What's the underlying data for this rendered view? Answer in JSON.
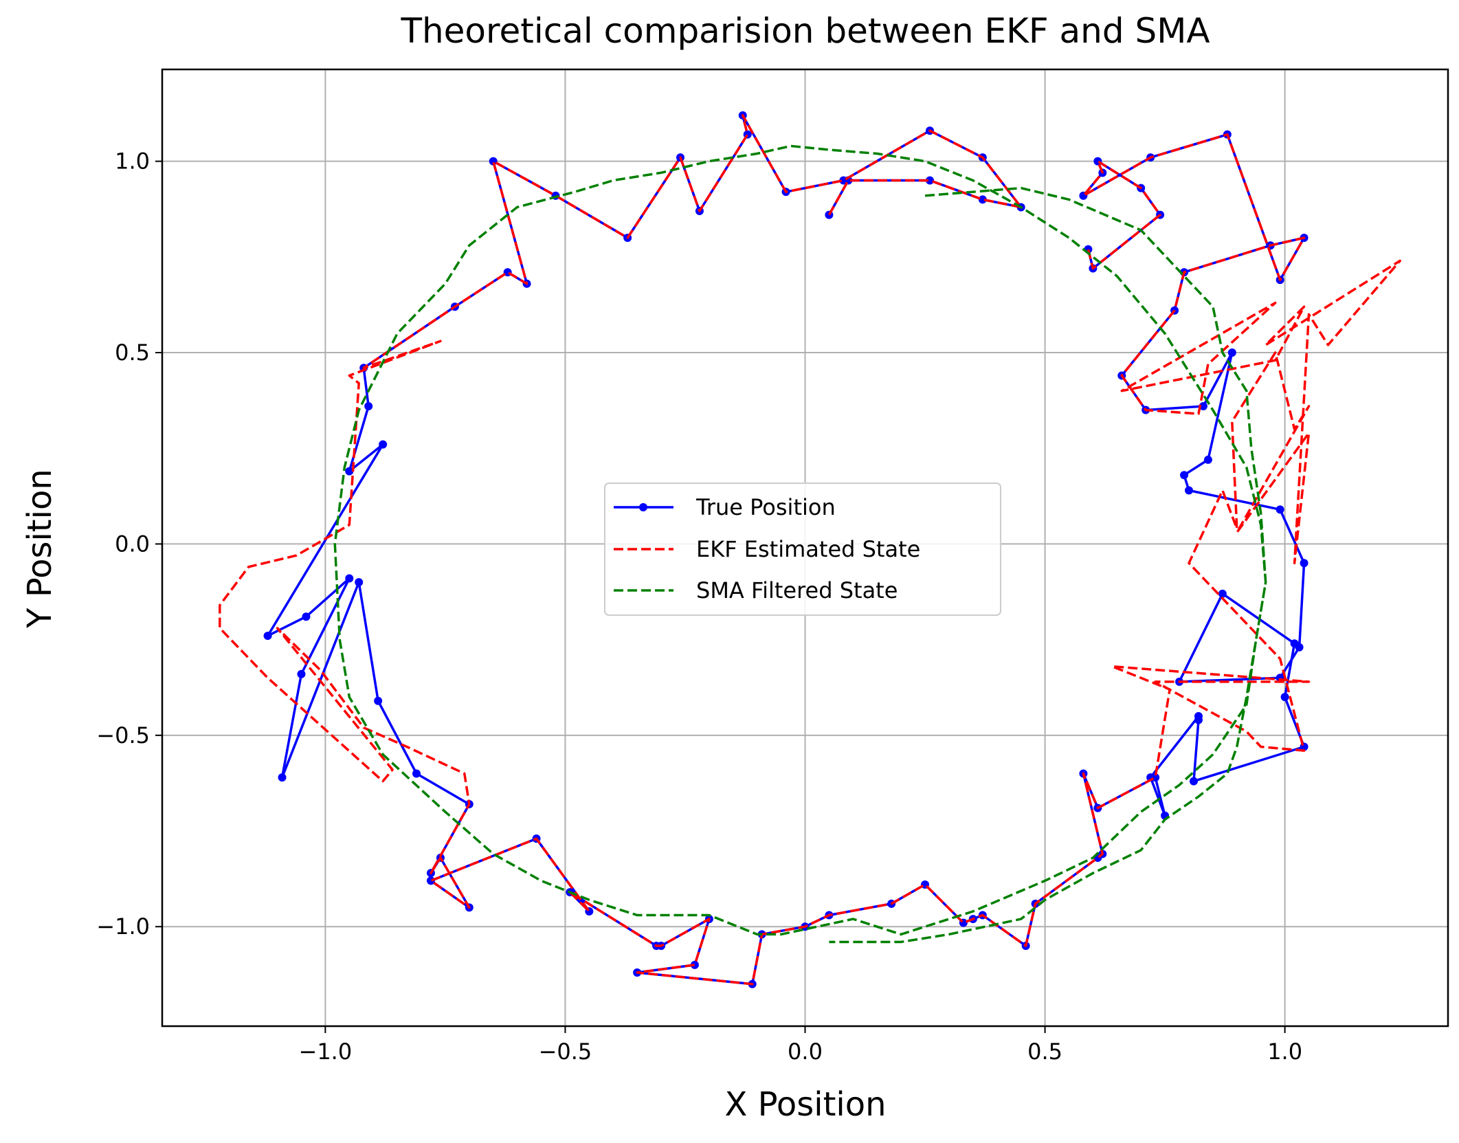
{
  "chart_data": {
    "type": "line",
    "title": "Theoretical comparision between EKF and SMA",
    "xlabel": "X Position",
    "ylabel": "Y Position",
    "xlim": [
      -1.34,
      1.34
    ],
    "ylim": [
      -1.26,
      1.24
    ],
    "grid": true,
    "legend_position": "center",
    "x_ticks": [
      -1.0,
      -0.5,
      0.0,
      0.5,
      1.0
    ],
    "x_tick_labels": [
      "−1.0",
      "−0.5",
      "0.0",
      "0.5",
      "1.0"
    ],
    "y_ticks": [
      1.0,
      0.5,
      0.0,
      -0.5,
      -1.0
    ],
    "y_tick_labels": [
      "1.0",
      "0.5",
      "0.0",
      "−0.5",
      "−1.0"
    ],
    "series": [
      {
        "name": "True Position",
        "color": "#0000ff",
        "style": "solid",
        "markers": true,
        "x": [
          0.05,
          0.09,
          0.26,
          0.37,
          0.45,
          0.37,
          0.26,
          0.08,
          -0.04,
          -0.13,
          -0.12,
          -0.22,
          -0.26,
          -0.37,
          -0.52,
          -0.65,
          -0.58,
          -0.62,
          -0.73,
          -0.92,
          -0.91,
          -0.95,
          -0.88,
          -1.12,
          -1.04,
          -0.95,
          -1.05,
          -1.09,
          -0.93,
          -0.89,
          -0.81,
          -0.7,
          -0.78,
          -0.76,
          -0.7,
          -0.78,
          -0.56,
          -0.45,
          -0.49,
          -0.31,
          -0.3,
          -0.2,
          -0.23,
          -0.35,
          -0.11,
          -0.09,
          0.0,
          0.05,
          0.18,
          0.25,
          0.33,
          0.35,
          0.37,
          0.46,
          0.48,
          0.61,
          0.62,
          0.58,
          0.61,
          0.73,
          0.75,
          0.72,
          0.82,
          0.82,
          0.81,
          1.04,
          1.0,
          1.02,
          0.87,
          0.78,
          0.99,
          1.03,
          1.04,
          0.99,
          0.8,
          0.79,
          0.84,
          0.89,
          0.83,
          0.71,
          0.66,
          0.77,
          0.79,
          0.97,
          1.04,
          0.99,
          0.88,
          0.72,
          0.58,
          0.62,
          0.61,
          0.7,
          0.74,
          0.6,
          0.59
        ],
        "y": [
          0.86,
          0.95,
          0.95,
          0.9,
          0.88,
          1.01,
          1.08,
          0.95,
          0.92,
          1.12,
          1.07,
          0.87,
          1.01,
          0.8,
          0.91,
          1.0,
          0.68,
          0.71,
          0.62,
          0.46,
          0.36,
          0.19,
          0.26,
          -0.24,
          -0.19,
          -0.09,
          -0.34,
          -0.61,
          -0.1,
          -0.41,
          -0.6,
          -0.68,
          -0.86,
          -0.82,
          -0.95,
          -0.88,
          -0.77,
          -0.96,
          -0.91,
          -1.05,
          -1.05,
          -0.98,
          -1.1,
          -1.12,
          -1.15,
          -1.02,
          -1.0,
          -0.97,
          -0.94,
          -0.89,
          -0.99,
          -0.98,
          -0.97,
          -1.05,
          -0.94,
          -0.82,
          -0.81,
          -0.6,
          -0.69,
          -0.61,
          -0.71,
          -0.61,
          -0.45,
          -0.46,
          -0.62,
          -0.53,
          -0.4,
          -0.26,
          -0.13,
          -0.36,
          -0.35,
          -0.27,
          -0.05,
          0.09,
          0.14,
          0.18,
          0.22,
          0.5,
          0.36,
          0.35,
          0.44,
          0.61,
          0.71,
          0.78,
          0.8,
          0.69,
          1.07,
          1.01,
          0.91,
          0.97,
          1.0,
          0.93,
          0.86,
          0.72,
          0.77
        ]
      },
      {
        "name": "EKF Estimated State",
        "color": "#ff0000",
        "style": "dashed",
        "markers": false,
        "x": [
          0.05,
          0.09,
          0.26,
          0.37,
          0.45,
          0.37,
          0.26,
          0.08,
          -0.04,
          -0.13,
          -0.12,
          -0.22,
          -0.26,
          -0.37,
          -0.52,
          -0.65,
          -0.58,
          -0.62,
          -0.73,
          -0.92,
          -0.76,
          -0.95,
          -0.93,
          -0.95,
          -1.06,
          -1.16,
          -1.22,
          -1.22,
          -1.12,
          -0.88,
          -0.86,
          -1.1,
          -1.01,
          -0.92,
          -0.83,
          -0.71,
          -0.7,
          -0.78,
          -0.76,
          -0.7,
          -0.78,
          -0.56,
          -0.45,
          -0.49,
          -0.31,
          -0.3,
          -0.2,
          -0.23,
          -0.35,
          -0.11,
          -0.09,
          0.0,
          0.05,
          0.18,
          0.25,
          0.33,
          0.35,
          0.37,
          0.46,
          0.48,
          0.61,
          0.62,
          0.58,
          0.61,
          0.73,
          0.76,
          0.64,
          1.05,
          0.73,
          0.92,
          0.95,
          1.04,
          0.99,
          0.8,
          0.87,
          0.9,
          0.89,
          0.98,
          1.02,
          1.05,
          0.9,
          1.05,
          1.02,
          1.05,
          1.09,
          1.24,
          0.96,
          1.04,
          0.98,
          0.66,
          0.98,
          0.84,
          0.82,
          0.71,
          0.66,
          0.77,
          0.79,
          0.97,
          1.04,
          0.99,
          0.88,
          0.72,
          0.58,
          0.62,
          0.61,
          0.7,
          0.74,
          0.6,
          0.59
        ],
        "y": [
          0.86,
          0.95,
          0.95,
          0.9,
          0.88,
          1.01,
          1.08,
          0.95,
          0.92,
          1.12,
          1.07,
          0.87,
          1.01,
          0.8,
          0.91,
          1.0,
          0.68,
          0.71,
          0.62,
          0.46,
          0.53,
          0.44,
          0.42,
          0.05,
          -0.03,
          -0.06,
          -0.16,
          -0.22,
          -0.35,
          -0.62,
          -0.59,
          -0.22,
          -0.33,
          -0.48,
          -0.53,
          -0.6,
          -0.68,
          -0.86,
          -0.82,
          -0.95,
          -0.88,
          -0.77,
          -0.96,
          -0.91,
          -1.05,
          -1.05,
          -0.98,
          -1.1,
          -1.12,
          -1.15,
          -1.02,
          -1.0,
          -0.97,
          -0.94,
          -0.89,
          -0.99,
          -0.98,
          -0.97,
          -1.05,
          -0.94,
          -0.82,
          -0.81,
          -0.6,
          -0.69,
          -0.61,
          -0.38,
          -0.32,
          -0.36,
          -0.36,
          -0.49,
          -0.53,
          -0.54,
          -0.3,
          -0.05,
          0.14,
          0.04,
          0.32,
          0.5,
          0.3,
          0.36,
          0.03,
          0.29,
          -0.05,
          0.6,
          0.52,
          0.74,
          0.52,
          0.62,
          0.48,
          0.4,
          0.63,
          0.47,
          0.34,
          0.35,
          0.44,
          0.61,
          0.71,
          0.78,
          0.8,
          0.69,
          1.07,
          1.01,
          0.91,
          0.97,
          1.0,
          0.93,
          0.86,
          0.72,
          0.77
        ]
      },
      {
        "name": "SMA Filtered State",
        "color": "#008000",
        "style": "dashed",
        "markers": false,
        "x": [
          0.25,
          0.45,
          0.55,
          0.7,
          0.85,
          0.87,
          0.92,
          0.93,
          0.95,
          0.96,
          0.94,
          0.92,
          0.85,
          0.78,
          0.7,
          0.6,
          0.5,
          0.35,
          0.25,
          0.2,
          0.1,
          -0.05,
          -0.1,
          -0.2,
          -0.35,
          -0.45,
          -0.55,
          -0.65,
          -0.75,
          -0.88,
          -0.95,
          -0.97,
          -0.98,
          -0.96,
          -0.93,
          -0.85,
          -0.75,
          -0.7,
          -0.6,
          -0.48,
          -0.4,
          -0.3,
          -0.2,
          -0.1,
          -0.03,
          0.05,
          0.15,
          0.25,
          0.35,
          0.45,
          0.55,
          0.65,
          0.75,
          0.85,
          0.92,
          0.95,
          0.96,
          0.94,
          0.92,
          0.9,
          0.88,
          0.82,
          0.75,
          0.7,
          0.6,
          0.5,
          0.45,
          0.3,
          0.2,
          0.05
        ],
        "y": [
          0.91,
          0.93,
          0.9,
          0.82,
          0.62,
          0.5,
          0.4,
          0.25,
          0.08,
          -0.1,
          -0.25,
          -0.42,
          -0.55,
          -0.63,
          -0.7,
          -0.82,
          -0.88,
          -0.96,
          -1.0,
          -1.02,
          -0.98,
          -1.02,
          -1.02,
          -0.97,
          -0.97,
          -0.93,
          -0.88,
          -0.81,
          -0.7,
          -0.55,
          -0.4,
          -0.25,
          0.0,
          0.2,
          0.35,
          0.55,
          0.68,
          0.78,
          0.88,
          0.92,
          0.95,
          0.97,
          1.0,
          1.02,
          1.04,
          1.03,
          1.02,
          1.0,
          0.95,
          0.88,
          0.8,
          0.7,
          0.55,
          0.35,
          0.2,
          0.05,
          -0.1,
          -0.25,
          -0.4,
          -0.53,
          -0.6,
          -0.66,
          -0.72,
          -0.8,
          -0.86,
          -0.93,
          -0.98,
          -1.02,
          -1.04,
          -1.04
        ]
      }
    ]
  }
}
